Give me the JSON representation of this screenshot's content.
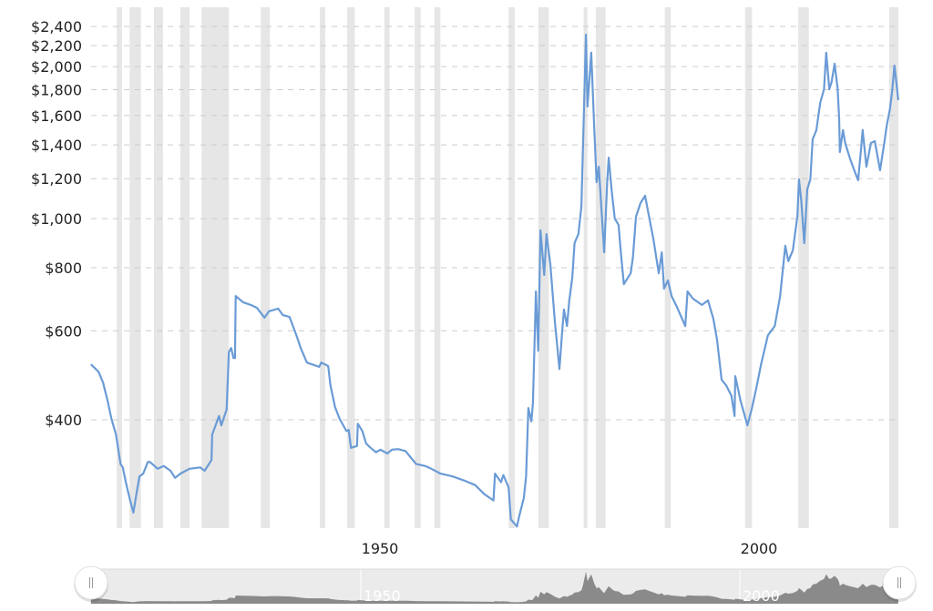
{
  "chart_data": {
    "type": "line",
    "title": "",
    "xlabel": "",
    "ylabel": "",
    "y_scale": "log",
    "ylim": [
      245,
      2600
    ],
    "xlim": [
      1914.4,
      2020.9
    ],
    "grid": "horizontal dashed",
    "legend": "none",
    "y_ticks": [
      400,
      600,
      800,
      1000,
      1200,
      1400,
      1600,
      1800,
      2000,
      2200,
      2400
    ],
    "y_tick_labels": [
      "$400",
      "$600",
      "$800",
      "$1,000",
      "$1,200",
      "$1,400",
      "$1,600",
      "$1,800",
      "$2,000",
      "$2,200",
      "$2,400"
    ],
    "x_ticks": [
      1950,
      2000
    ],
    "x_tick_labels": [
      "1950",
      "2000"
    ],
    "colors": {
      "line": "#6a9bd6",
      "recession_band": "#e6e6e6",
      "grid": "#cccccc",
      "navigator_area": "#8a8a8a",
      "navigator_bg": "#ebebeb"
    },
    "recession_bands": [
      [
        1917.8,
        1918.5
      ],
      [
        1919.5,
        1921.0
      ],
      [
        1922.7,
        1923.9
      ],
      [
        1926.2,
        1927.4
      ],
      [
        1929.0,
        1932.6
      ],
      [
        1936.8,
        1938.0
      ],
      [
        1944.6,
        1945.3
      ],
      [
        1948.2,
        1949.2
      ],
      [
        1953.1,
        1953.8
      ],
      [
        1957.1,
        1957.9
      ],
      [
        1959.7,
        1960.5
      ],
      [
        1969.5,
        1970.3
      ],
      [
        1973.4,
        1974.8
      ],
      [
        1979.4,
        1979.9
      ],
      [
        1981.0,
        1982.3
      ],
      [
        1990.1,
        1990.9
      ],
      [
        2000.7,
        2001.6
      ],
      [
        2007.7,
        2009.1
      ],
      [
        2019.7,
        2021.0
      ]
    ],
    "series": [
      {
        "points": [
          [
            1914.4,
            515
          ],
          [
            1915.4,
            498
          ],
          [
            1916.0,
            474
          ],
          [
            1916.6,
            436
          ],
          [
            1917.1,
            402
          ],
          [
            1917.7,
            374
          ],
          [
            1918.3,
            327
          ],
          [
            1918.6,
            322
          ],
          [
            1919.0,
            301
          ],
          [
            1919.5,
            280
          ],
          [
            1920.0,
            262
          ],
          [
            1920.4,
            285
          ],
          [
            1920.8,
            309
          ],
          [
            1921.3,
            313
          ],
          [
            1921.9,
            330
          ],
          [
            1922.2,
            330
          ],
          [
            1923.2,
            320
          ],
          [
            1924.0,
            324
          ],
          [
            1924.9,
            317
          ],
          [
            1925.5,
            307
          ],
          [
            1926.2,
            313
          ],
          [
            1927.4,
            320
          ],
          [
            1928.8,
            322
          ],
          [
            1929.4,
            317
          ],
          [
            1930.3,
            333
          ],
          [
            1930.4,
            374
          ],
          [
            1931.3,
            407
          ],
          [
            1931.6,
            390
          ],
          [
            1932.3,
            419
          ],
          [
            1932.6,
            544
          ],
          [
            1932.9,
            555
          ],
          [
            1933.2,
            530
          ],
          [
            1933.4,
            530
          ],
          [
            1933.5,
            703
          ],
          [
            1934.5,
            683
          ],
          [
            1935.5,
            675
          ],
          [
            1936.3,
            666
          ],
          [
            1937.3,
            637
          ],
          [
            1937.9,
            656
          ],
          [
            1939.1,
            664
          ],
          [
            1939.7,
            645
          ],
          [
            1940.6,
            639
          ],
          [
            1941.5,
            588
          ],
          [
            1942.1,
            553
          ],
          [
            1942.9,
            519
          ],
          [
            1944.5,
            509
          ],
          [
            1944.8,
            519
          ],
          [
            1945.7,
            511
          ],
          [
            1946.0,
            468
          ],
          [
            1946.6,
            424
          ],
          [
            1947.2,
            402
          ],
          [
            1948.1,
            380
          ],
          [
            1948.4,
            382
          ],
          [
            1948.7,
            352
          ],
          [
            1949.5,
            355
          ],
          [
            1949.6,
            393
          ],
          [
            1950.2,
            380
          ],
          [
            1950.7,
            359
          ],
          [
            1951.3,
            352
          ],
          [
            1952.0,
            345
          ],
          [
            1952.6,
            349
          ],
          [
            1953.5,
            343
          ],
          [
            1954.1,
            349
          ],
          [
            1954.9,
            350
          ],
          [
            1955.9,
            347
          ],
          [
            1956.5,
            338
          ],
          [
            1957.3,
            327
          ],
          [
            1958.5,
            324
          ],
          [
            1959.3,
            320
          ],
          [
            1960.5,
            313
          ],
          [
            1962.1,
            309
          ],
          [
            1963.7,
            303
          ],
          [
            1965.1,
            297
          ],
          [
            1966.3,
            285
          ],
          [
            1967.5,
            277
          ],
          [
            1967.7,
            313
          ],
          [
            1968.5,
            301
          ],
          [
            1968.8,
            311
          ],
          [
            1969.5,
            294
          ],
          [
            1969.8,
            254
          ],
          [
            1970.6,
            246
          ],
          [
            1970.9,
            258
          ],
          [
            1971.5,
            280
          ],
          [
            1971.8,
            309
          ],
          [
            1972.1,
            422
          ],
          [
            1972.5,
            397
          ],
          [
            1972.7,
            431
          ],
          [
            1973.1,
            718
          ],
          [
            1973.4,
            548
          ],
          [
            1973.7,
            948
          ],
          [
            1974.2,
            774
          ],
          [
            1974.5,
            932
          ],
          [
            1975.0,
            813
          ],
          [
            1975.4,
            683
          ],
          [
            1975.6,
            626
          ],
          [
            1976.2,
            504
          ],
          [
            1976.6,
            608
          ],
          [
            1976.8,
            661
          ],
          [
            1977.2,
            613
          ],
          [
            1977.5,
            689
          ],
          [
            1977.9,
            764
          ],
          [
            1978.2,
            895
          ],
          [
            1978.7,
            932
          ],
          [
            1979.1,
            1056
          ],
          [
            1979.3,
            1377
          ],
          [
            1979.7,
            2313
          ],
          [
            1979.9,
            1667
          ],
          [
            1980.4,
            2130
          ],
          [
            1980.8,
            1497
          ],
          [
            1981.1,
            1181
          ],
          [
            1981.4,
            1267
          ],
          [
            1981.9,
            960
          ],
          [
            1982.1,
            858
          ],
          [
            1982.5,
            1181
          ],
          [
            1982.7,
            1321
          ],
          [
            1983.1,
            1133
          ],
          [
            1983.5,
            1001
          ],
          [
            1984.0,
            972
          ],
          [
            1984.3,
            858
          ],
          [
            1984.7,
            742
          ],
          [
            1985.6,
            780
          ],
          [
            1985.9,
            840
          ],
          [
            1986.3,
            1009
          ],
          [
            1986.9,
            1074
          ],
          [
            1987.5,
            1110
          ],
          [
            1988.0,
            1013
          ],
          [
            1988.6,
            910
          ],
          [
            1989.3,
            780
          ],
          [
            1989.7,
            858
          ],
          [
            1990.0,
            727
          ],
          [
            1990.5,
            755
          ],
          [
            1991.0,
            703
          ],
          [
            1991.7,
            669
          ],
          [
            1992.8,
            613
          ],
          [
            1993.1,
            718
          ],
          [
            1993.8,
            695
          ],
          [
            1995.0,
            675
          ],
          [
            1995.8,
            689
          ],
          [
            1996.5,
            634
          ],
          [
            1997.0,
            576
          ],
          [
            1997.6,
            480
          ],
          [
            1998.2,
            468
          ],
          [
            1998.9,
            446
          ],
          [
            1999.3,
            407
          ],
          [
            1999.4,
            488
          ],
          [
            2000.1,
            436
          ],
          [
            2001.0,
            390
          ],
          [
            2001.6,
            422
          ],
          [
            2002.2,
            464
          ],
          [
            2002.8,
            515
          ],
          [
            2003.7,
            588
          ],
          [
            2004.6,
            613
          ],
          [
            2005.3,
            700
          ],
          [
            2006.0,
            884
          ],
          [
            2006.4,
            824
          ],
          [
            2007.0,
            866
          ],
          [
            2007.6,
            1013
          ],
          [
            2007.8,
            1196
          ],
          [
            2008.1,
            1087
          ],
          [
            2008.5,
            895
          ],
          [
            2008.9,
            1143
          ],
          [
            2009.3,
            1196
          ],
          [
            2009.6,
            1436
          ],
          [
            2010.1,
            1497
          ],
          [
            2010.6,
            1695
          ],
          [
            2011.1,
            1804
          ],
          [
            2011.4,
            2130
          ],
          [
            2011.8,
            1804
          ],
          [
            2012.1,
            1864
          ],
          [
            2012.5,
            2026
          ],
          [
            2012.9,
            1811
          ],
          [
            2013.1,
            1579
          ],
          [
            2013.2,
            1355
          ],
          [
            2013.6,
            1497
          ],
          [
            2013.9,
            1412
          ],
          [
            2014.5,
            1321
          ],
          [
            2015.1,
            1247
          ],
          [
            2015.6,
            1191
          ],
          [
            2016.0,
            1377
          ],
          [
            2016.2,
            1497
          ],
          [
            2016.7,
            1267
          ],
          [
            2017.3,
            1412
          ],
          [
            2017.8,
            1424
          ],
          [
            2018.5,
            1247
          ],
          [
            2019.0,
            1395
          ],
          [
            2019.4,
            1535
          ],
          [
            2019.8,
            1647
          ],
          [
            2020.1,
            1790
          ],
          [
            2020.4,
            2009
          ],
          [
            2020.9,
            1716
          ]
        ]
      }
    ],
    "navigator": {
      "x_tick_labels": [
        "1950",
        "2000"
      ],
      "x_ticks": [
        1950,
        2000
      ]
    }
  }
}
